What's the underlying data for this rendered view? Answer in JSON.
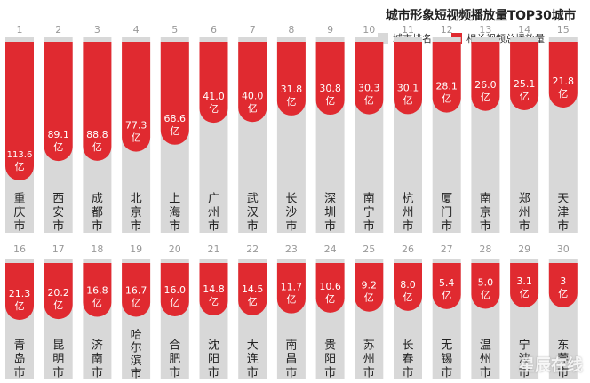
{
  "title": "城市形象短视频播放量TOP30城市",
  "legend": {
    "rank_label": "城市排名",
    "views_label": "相关视频总播放量"
  },
  "colors": {
    "bar_gray": "#d8d8d8",
    "red": "#e02a30",
    "rank_text": "#999999",
    "city_text": "#222222"
  },
  "watermark": "星辰在线",
  "chart_data": {
    "type": "bar",
    "title": "城市形象短视频播放量TOP30城市",
    "unit": "亿",
    "series": [
      {
        "name": "相关视频总播放量"
      }
    ],
    "rows": [
      {
        "items": [
          {
            "rank": "1",
            "city": "重庆市",
            "value": 113.6,
            "label": "113.6"
          },
          {
            "rank": "2",
            "city": "西安市",
            "value": 89.1,
            "label": "89.1"
          },
          {
            "rank": "3",
            "city": "成都市",
            "value": 88.8,
            "label": "88.8"
          },
          {
            "rank": "4",
            "city": "北京市",
            "value": 77.3,
            "label": "77.3"
          },
          {
            "rank": "5",
            "city": "上海市",
            "value": 68.6,
            "label": "68.6"
          },
          {
            "rank": "6",
            "city": "广州市",
            "value": 41.0,
            "label": "41.0"
          },
          {
            "rank": "7",
            "city": "武汉市",
            "value": 40.0,
            "label": "40.0"
          },
          {
            "rank": "8",
            "city": "长沙市",
            "value": 31.8,
            "label": "31.8"
          },
          {
            "rank": "9",
            "city": "深圳市",
            "value": 30.8,
            "label": "30.8"
          },
          {
            "rank": "10",
            "city": "南宁市",
            "value": 30.3,
            "label": "30.3"
          },
          {
            "rank": "11",
            "city": "杭州市",
            "value": 30.1,
            "label": "30.1"
          },
          {
            "rank": "12",
            "city": "厦门市",
            "value": 28.1,
            "label": "28.1"
          },
          {
            "rank": "13",
            "city": "南京市",
            "value": 26.0,
            "label": "26.0"
          },
          {
            "rank": "14",
            "city": "郑州市",
            "value": 25.1,
            "label": "25.1"
          },
          {
            "rank": "15",
            "city": "天津市",
            "value": 21.8,
            "label": "21.8"
          }
        ]
      },
      {
        "items": [
          {
            "rank": "16",
            "city": "青岛市",
            "value": 21.3,
            "label": "21.3"
          },
          {
            "rank": "17",
            "city": "昆明市",
            "value": 20.2,
            "label": "20.2"
          },
          {
            "rank": "18",
            "city": "济南市",
            "value": 16.8,
            "label": "16.8"
          },
          {
            "rank": "19",
            "city": "哈尔滨市",
            "value": 16.7,
            "label": "16.7"
          },
          {
            "rank": "20",
            "city": "合肥市",
            "value": 16.0,
            "label": "16.0"
          },
          {
            "rank": "21",
            "city": "沈阳市",
            "value": 14.8,
            "label": "14.8"
          },
          {
            "rank": "22",
            "city": "大连市",
            "value": 14.5,
            "label": "14.5"
          },
          {
            "rank": "23",
            "city": "南昌市",
            "value": 11.7,
            "label": "11.7"
          },
          {
            "rank": "24",
            "city": "贵阳市",
            "value": 10.6,
            "label": "10.6"
          },
          {
            "rank": "25",
            "city": "苏州市",
            "value": 9.2,
            "label": "9.2"
          },
          {
            "rank": "26",
            "city": "长春市",
            "value": 8.0,
            "label": "8.0"
          },
          {
            "rank": "27",
            "city": "无锡市",
            "value": 5.4,
            "label": "5.4"
          },
          {
            "rank": "28",
            "city": "温州市",
            "value": 5.0,
            "label": "5.0"
          },
          {
            "rank": "29",
            "city": "宁波市",
            "value": 3.1,
            "label": "3.1"
          },
          {
            "rank": "30",
            "city": "东莞市",
            "value": 3,
            "label": "3"
          }
        ]
      }
    ]
  }
}
